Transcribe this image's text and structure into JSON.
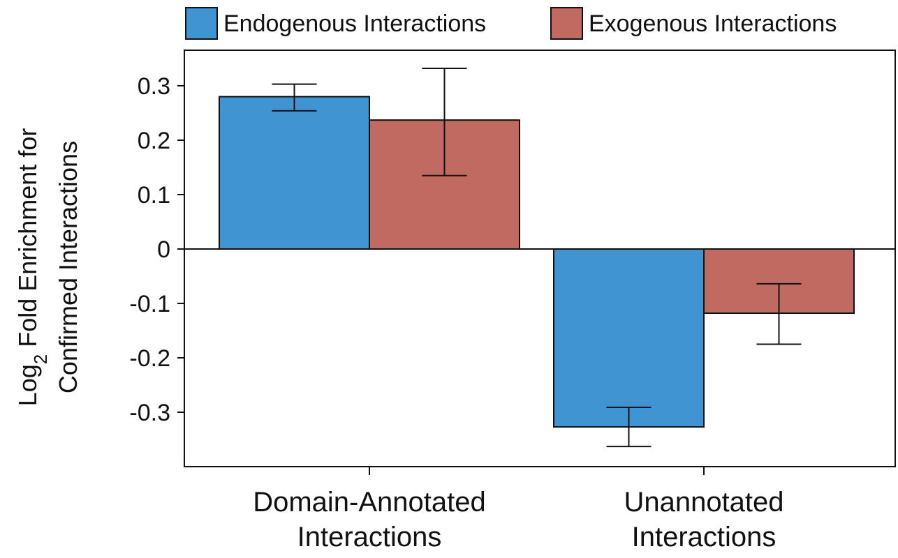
{
  "chart_data": {
    "type": "bar",
    "categories": [
      "Domain-Annotated Interactions",
      "Unannotated Interactions"
    ],
    "category_lines": [
      [
        "Domain-Annotated",
        "Interactions"
      ],
      [
        "Unannotated",
        "Interactions"
      ]
    ],
    "series": [
      {
        "name": "Endogenous Interactions",
        "color": "#3f94d1",
        "values": [
          0.28,
          -0.327
        ],
        "error_low": [
          0.254,
          -0.363
        ],
        "error_high": [
          0.303,
          -0.291
        ]
      },
      {
        "name": "Exogenous Interactions",
        "color": "#c06a62",
        "values": [
          0.237,
          -0.118
        ],
        "error_low": [
          0.135,
          -0.175
        ],
        "error_high": [
          0.332,
          -0.064
        ]
      }
    ],
    "ylabel": {
      "line1_prefix": "Log",
      "line1_sub": "2",
      "line1_suffix": " Fold Enrichment for",
      "line2": "Confirmed Interactions"
    },
    "ylim": [
      -0.4,
      0.36
    ],
    "yticks": [
      0.3,
      0.2,
      0.1,
      0,
      -0.1,
      -0.2,
      -0.3
    ],
    "ytick_labels": [
      "0.3",
      "0.2",
      "0.1",
      "0",
      "-0.1",
      "-0.2",
      "-0.3"
    ],
    "legend_position": "top",
    "grid": false
  }
}
